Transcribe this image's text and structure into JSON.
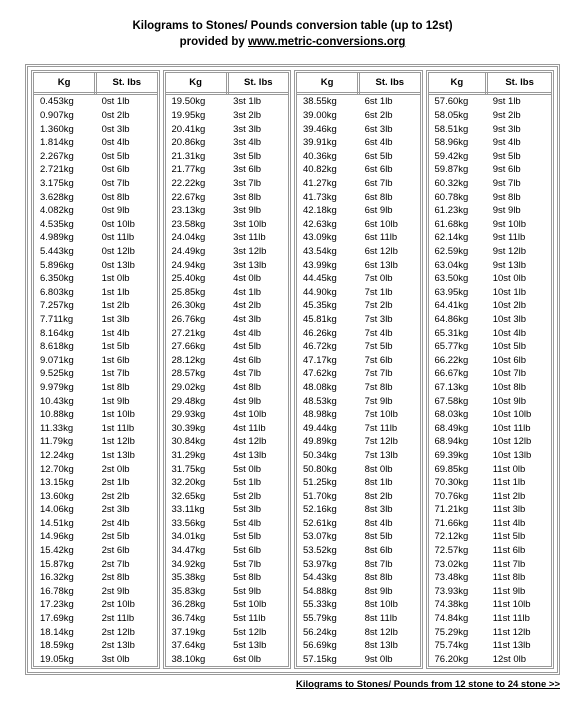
{
  "title_line1": "Kilograms to Stones/ Pounds conversion table (up to 12st)",
  "title_line2_prefix": "provided by ",
  "title_link": "www.metric-conversions.org",
  "headers": {
    "kg": "Kg",
    "stlbs": "St. lbs"
  },
  "footer_link": "Kilograms to Stones/ Pounds from 12 stone to 24 stone >>",
  "columns": [
    [
      [
        "0.453kg",
        "0st 1lb"
      ],
      [
        "0.907kg",
        "0st 2lb"
      ],
      [
        "1.360kg",
        "0st 3lb"
      ],
      [
        "1.814kg",
        "0st 4lb"
      ],
      [
        "2.267kg",
        "0st 5lb"
      ],
      [
        "2.721kg",
        "0st 6lb"
      ],
      [
        "3.175kg",
        "0st 7lb"
      ],
      [
        "3.628kg",
        "0st 8lb"
      ],
      [
        "4.082kg",
        "0st 9lb"
      ],
      [
        "4.535kg",
        "0st 10lb"
      ],
      [
        "4.989kg",
        "0st 11lb"
      ],
      [
        "5.443kg",
        "0st 12lb"
      ],
      [
        "5.896kg",
        "0st 13lb"
      ],
      [
        "6.350kg",
        "1st 0lb"
      ],
      [
        "6.803kg",
        "1st 1lb"
      ],
      [
        "7.257kg",
        "1st 2lb"
      ],
      [
        "7.711kg",
        "1st 3lb"
      ],
      [
        "8.164kg",
        "1st 4lb"
      ],
      [
        "8.618kg",
        "1st 5lb"
      ],
      [
        "9.071kg",
        "1st 6lb"
      ],
      [
        "9.525kg",
        "1st 7lb"
      ],
      [
        "9.979kg",
        "1st 8lb"
      ],
      [
        "10.43kg",
        "1st 9lb"
      ],
      [
        "10.88kg",
        "1st 10lb"
      ],
      [
        "11.33kg",
        "1st 11lb"
      ],
      [
        "11.79kg",
        "1st 12lb"
      ],
      [
        "12.24kg",
        "1st 13lb"
      ],
      [
        "12.70kg",
        "2st 0lb"
      ],
      [
        "13.15kg",
        "2st 1lb"
      ],
      [
        "13.60kg",
        "2st 2lb"
      ],
      [
        "14.06kg",
        "2st 3lb"
      ],
      [
        "14.51kg",
        "2st 4lb"
      ],
      [
        "14.96kg",
        "2st 5lb"
      ],
      [
        "15.42kg",
        "2st 6lb"
      ],
      [
        "15.87kg",
        "2st 7lb"
      ],
      [
        "16.32kg",
        "2st 8lb"
      ],
      [
        "16.78kg",
        "2st 9lb"
      ],
      [
        "17.23kg",
        "2st 10lb"
      ],
      [
        "17.69kg",
        "2st 11lb"
      ],
      [
        "18.14kg",
        "2st 12lb"
      ],
      [
        "18.59kg",
        "2st 13lb"
      ],
      [
        "19.05kg",
        "3st 0lb"
      ]
    ],
    [
      [
        "19.50kg",
        "3st 1lb"
      ],
      [
        "19.95kg",
        "3st 2lb"
      ],
      [
        "20.41kg",
        "3st 3lb"
      ],
      [
        "20.86kg",
        "3st 4lb"
      ],
      [
        "21.31kg",
        "3st 5lb"
      ],
      [
        "21.77kg",
        "3st 6lb"
      ],
      [
        "22.22kg",
        "3st 7lb"
      ],
      [
        "22.67kg",
        "3st 8lb"
      ],
      [
        "23.13kg",
        "3st 9lb"
      ],
      [
        "23.58kg",
        "3st 10lb"
      ],
      [
        "24.04kg",
        "3st 11lb"
      ],
      [
        "24.49kg",
        "3st 12lb"
      ],
      [
        "24.94kg",
        "3st 13lb"
      ],
      [
        "25.40kg",
        "4st 0lb"
      ],
      [
        "25.85kg",
        "4st 1lb"
      ],
      [
        "26.30kg",
        "4st 2lb"
      ],
      [
        "26.76kg",
        "4st 3lb"
      ],
      [
        "27.21kg",
        "4st 4lb"
      ],
      [
        "27.66kg",
        "4st 5lb"
      ],
      [
        "28.12kg",
        "4st 6lb"
      ],
      [
        "28.57kg",
        "4st 7lb"
      ],
      [
        "29.02kg",
        "4st 8lb"
      ],
      [
        "29.48kg",
        "4st 9lb"
      ],
      [
        "29.93kg",
        "4st 10lb"
      ],
      [
        "30.39kg",
        "4st 11lb"
      ],
      [
        "30.84kg",
        "4st 12lb"
      ],
      [
        "31.29kg",
        "4st 13lb"
      ],
      [
        "31.75kg",
        "5st 0lb"
      ],
      [
        "32.20kg",
        "5st 1lb"
      ],
      [
        "32.65kg",
        "5st 2lb"
      ],
      [
        "33.11kg",
        "5st 3lb"
      ],
      [
        "33.56kg",
        "5st 4lb"
      ],
      [
        "34.01kg",
        "5st 5lb"
      ],
      [
        "34.47kg",
        "5st 6lb"
      ],
      [
        "34.92kg",
        "5st 7lb"
      ],
      [
        "35.38kg",
        "5st 8lb"
      ],
      [
        "35.83kg",
        "5st 9lb"
      ],
      [
        "36.28kg",
        "5st 10lb"
      ],
      [
        "36.74kg",
        "5st 11lb"
      ],
      [
        "37.19kg",
        "5st 12lb"
      ],
      [
        "37.64kg",
        "5st 13lb"
      ],
      [
        "38.10kg",
        "6st 0lb"
      ]
    ],
    [
      [
        "38.55kg",
        "6st 1lb"
      ],
      [
        "39.00kg",
        "6st 2lb"
      ],
      [
        "39.46kg",
        "6st 3lb"
      ],
      [
        "39.91kg",
        "6st 4lb"
      ],
      [
        "40.36kg",
        "6st 5lb"
      ],
      [
        "40.82kg",
        "6st 6lb"
      ],
      [
        "41.27kg",
        "6st 7lb"
      ],
      [
        "41.73kg",
        "6st 8lb"
      ],
      [
        "42.18kg",
        "6st 9lb"
      ],
      [
        "42.63kg",
        "6st 10lb"
      ],
      [
        "43.09kg",
        "6st 11lb"
      ],
      [
        "43.54kg",
        "6st 12lb"
      ],
      [
        "43.99kg",
        "6st 13lb"
      ],
      [
        "44.45kg",
        "7st 0lb"
      ],
      [
        "44.90kg",
        "7st 1lb"
      ],
      [
        "45.35kg",
        "7st 2lb"
      ],
      [
        "45.81kg",
        "7st 3lb"
      ],
      [
        "46.26kg",
        "7st 4lb"
      ],
      [
        "46.72kg",
        "7st 5lb"
      ],
      [
        "47.17kg",
        "7st 6lb"
      ],
      [
        "47.62kg",
        "7st 7lb"
      ],
      [
        "48.08kg",
        "7st 8lb"
      ],
      [
        "48.53kg",
        "7st 9lb"
      ],
      [
        "48.98kg",
        "7st 10lb"
      ],
      [
        "49.44kg",
        "7st 11lb"
      ],
      [
        "49.89kg",
        "7st 12lb"
      ],
      [
        "50.34kg",
        "7st 13lb"
      ],
      [
        "50.80kg",
        "8st 0lb"
      ],
      [
        "51.25kg",
        "8st 1lb"
      ],
      [
        "51.70kg",
        "8st 2lb"
      ],
      [
        "52.16kg",
        "8st 3lb"
      ],
      [
        "52.61kg",
        "8st 4lb"
      ],
      [
        "53.07kg",
        "8st 5lb"
      ],
      [
        "53.52kg",
        "8st 6lb"
      ],
      [
        "53.97kg",
        "8st 7lb"
      ],
      [
        "54.43kg",
        "8st 8lb"
      ],
      [
        "54.88kg",
        "8st 9lb"
      ],
      [
        "55.33kg",
        "8st 10lb"
      ],
      [
        "55.79kg",
        "8st 11lb"
      ],
      [
        "56.24kg",
        "8st 12lb"
      ],
      [
        "56.69kg",
        "8st 13lb"
      ],
      [
        "57.15kg",
        "9st 0lb"
      ]
    ],
    [
      [
        "57.60kg",
        "9st 1lb"
      ],
      [
        "58.05kg",
        "9st 2lb"
      ],
      [
        "58.51kg",
        "9st 3lb"
      ],
      [
        "58.96kg",
        "9st 4lb"
      ],
      [
        "59.42kg",
        "9st 5lb"
      ],
      [
        "59.87kg",
        "9st 6lb"
      ],
      [
        "60.32kg",
        "9st 7lb"
      ],
      [
        "60.78kg",
        "9st 8lb"
      ],
      [
        "61.23kg",
        "9st 9lb"
      ],
      [
        "61.68kg",
        "9st 10lb"
      ],
      [
        "62.14kg",
        "9st 11lb"
      ],
      [
        "62.59kg",
        "9st 12lb"
      ],
      [
        "63.04kg",
        "9st 13lb"
      ],
      [
        "63.50kg",
        "10st 0lb"
      ],
      [
        "63.95kg",
        "10st 1lb"
      ],
      [
        "64.41kg",
        "10st 2lb"
      ],
      [
        "64.86kg",
        "10st 3lb"
      ],
      [
        "65.31kg",
        "10st 4lb"
      ],
      [
        "65.77kg",
        "10st 5lb"
      ],
      [
        "66.22kg",
        "10st 6lb"
      ],
      [
        "66.67kg",
        "10st 7lb"
      ],
      [
        "67.13kg",
        "10st 8lb"
      ],
      [
        "67.58kg",
        "10st 9lb"
      ],
      [
        "68.03kg",
        "10st 10lb"
      ],
      [
        "68.49kg",
        "10st 11lb"
      ],
      [
        "68.94kg",
        "10st 12lb"
      ],
      [
        "69.39kg",
        "10st 13lb"
      ],
      [
        "69.85kg",
        "11st 0lb"
      ],
      [
        "70.30kg",
        "11st 1lb"
      ],
      [
        "70.76kg",
        "11st 2lb"
      ],
      [
        "71.21kg",
        "11st 3lb"
      ],
      [
        "71.66kg",
        "11st 4lb"
      ],
      [
        "72.12kg",
        "11st 5lb"
      ],
      [
        "72.57kg",
        "11st 6lb"
      ],
      [
        "73.02kg",
        "11st 7lb"
      ],
      [
        "73.48kg",
        "11st 8lb"
      ],
      [
        "73.93kg",
        "11st 9lb"
      ],
      [
        "74.38kg",
        "11st 10lb"
      ],
      [
        "74.84kg",
        "11st 11lb"
      ],
      [
        "75.29kg",
        "11st 12lb"
      ],
      [
        "75.74kg",
        "11st 13lb"
      ],
      [
        "76.20kg",
        "12st 0lb"
      ]
    ]
  ]
}
